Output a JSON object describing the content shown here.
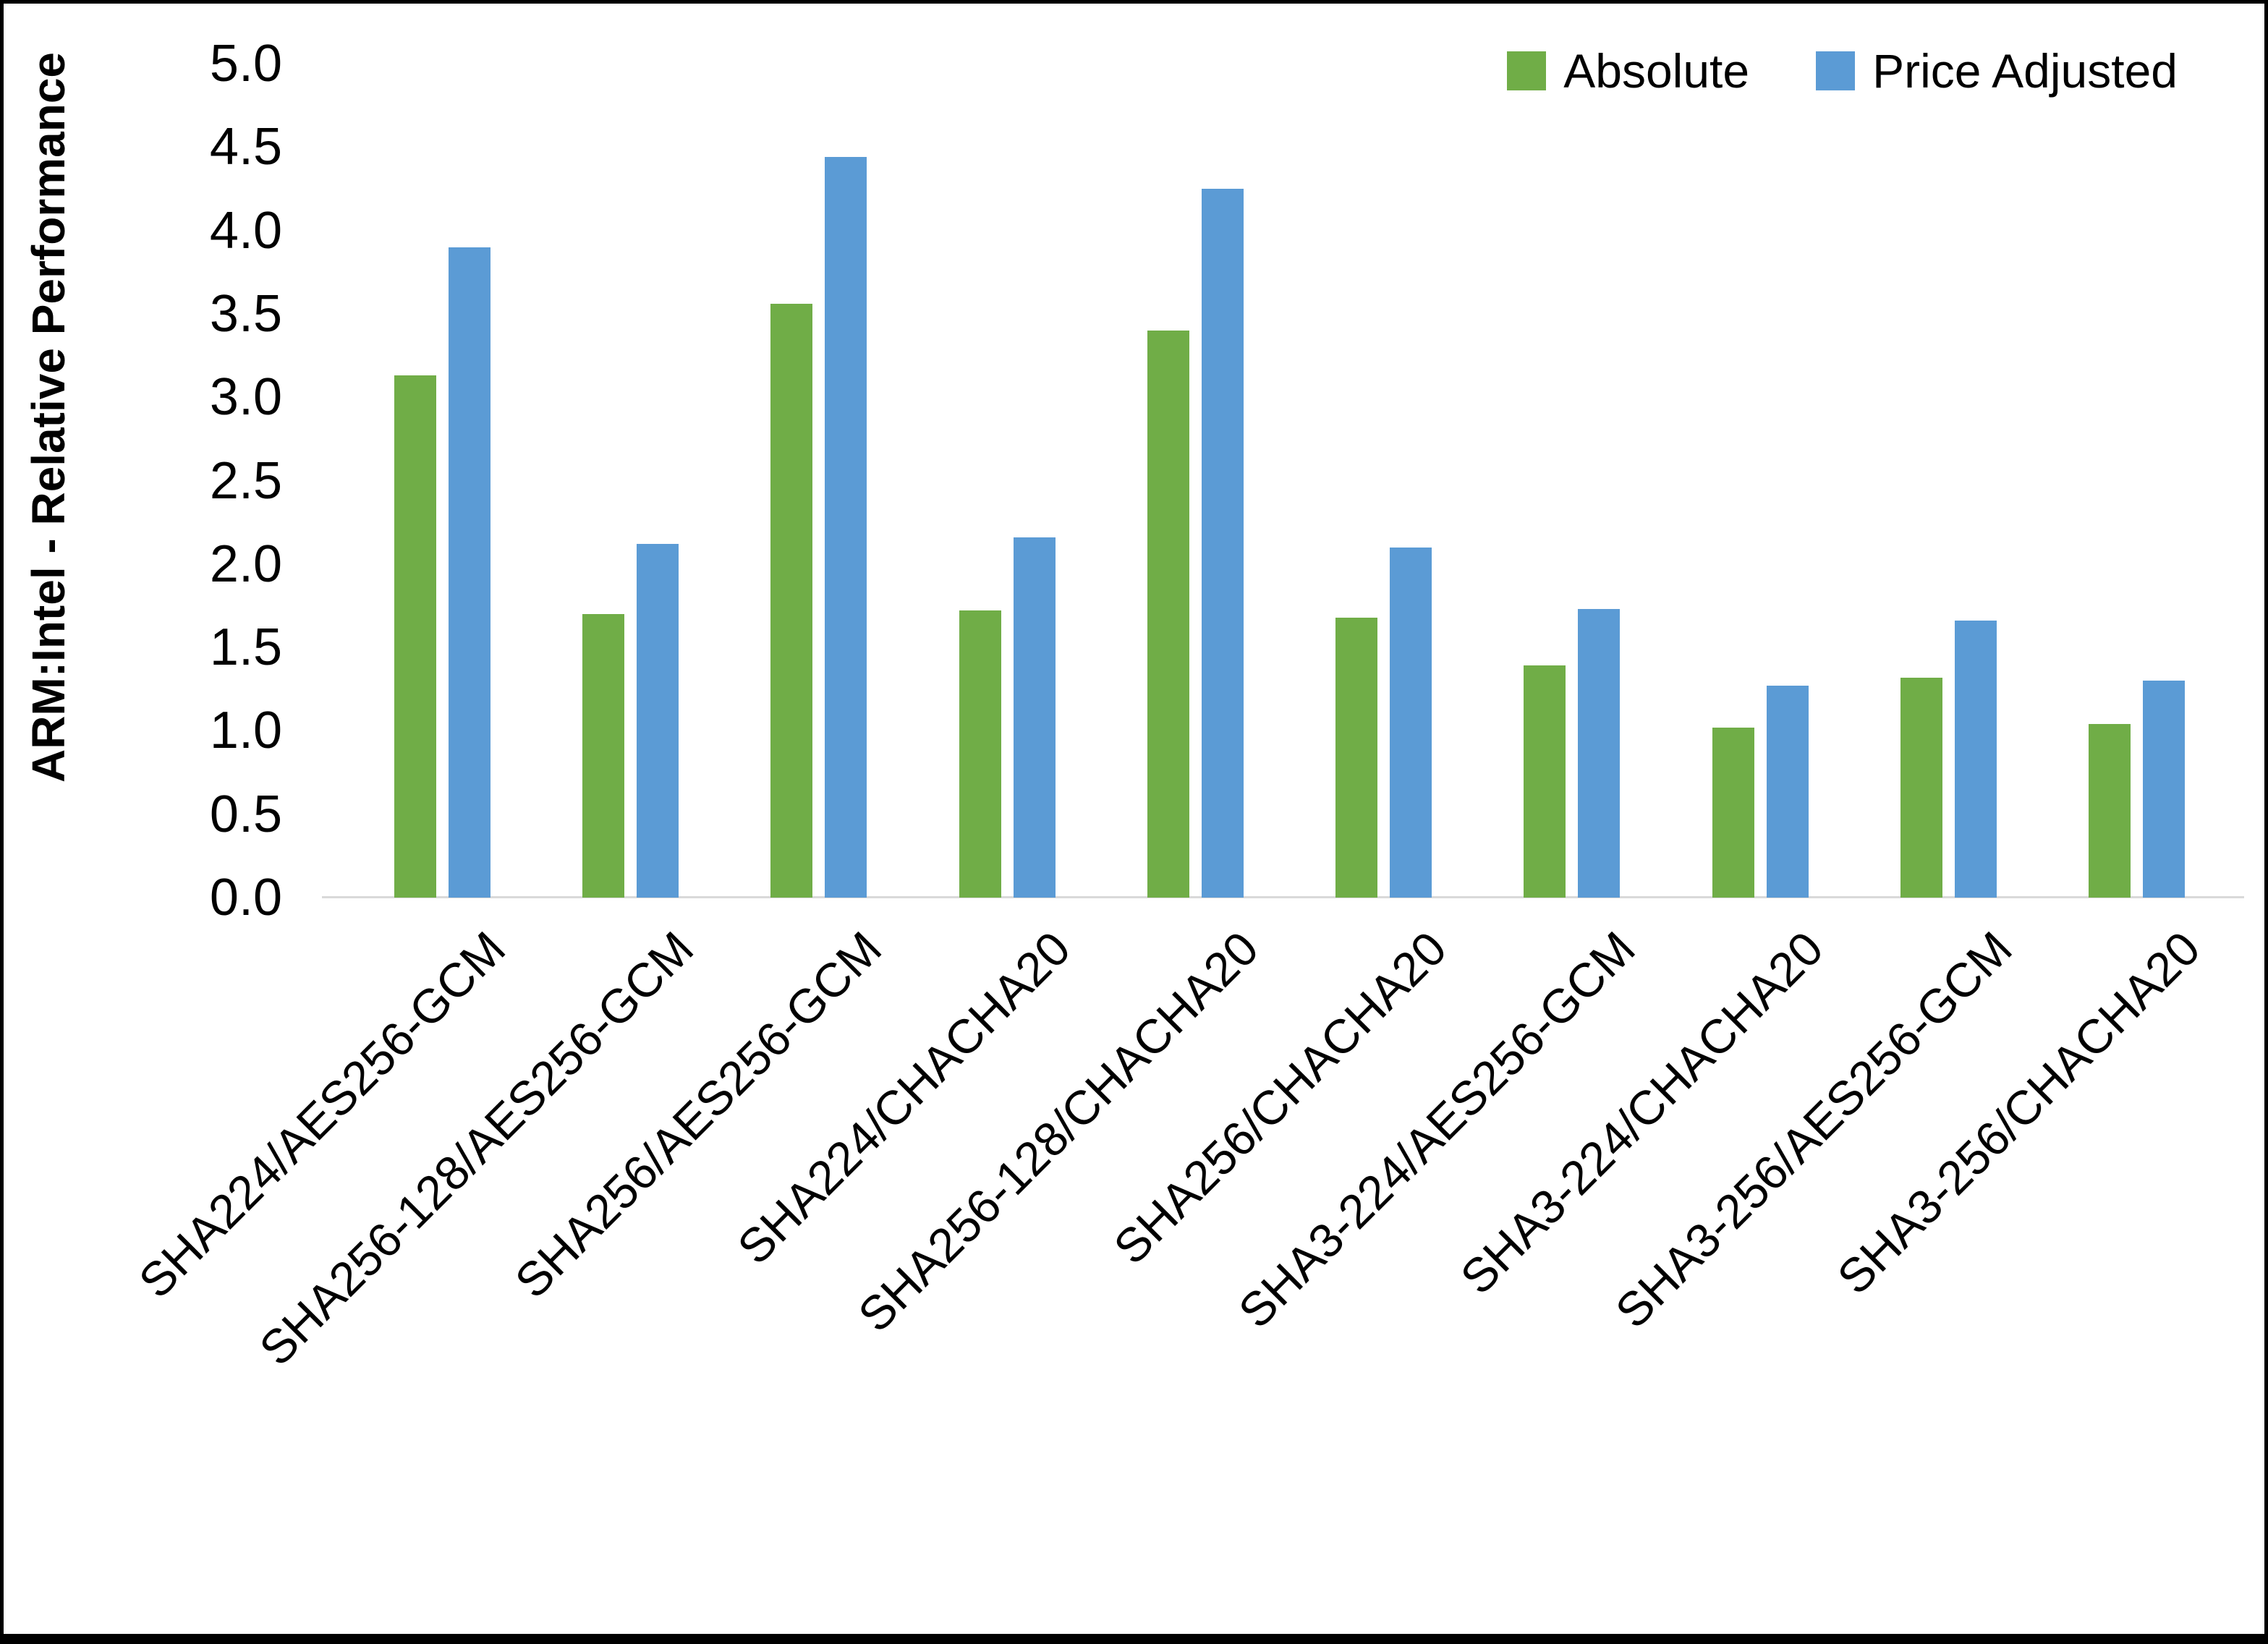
{
  "figure": {
    "background": "#ffffff",
    "border_color": "#000000"
  },
  "y_axis": {
    "title": "ARM:Intel - Relative Performance",
    "ticks": [
      "5.0",
      "4.5",
      "4.0",
      "3.5",
      "3.0",
      "2.5",
      "2.0",
      "1.5",
      "1.0",
      "0.5",
      "0.0"
    ],
    "min": 0.0,
    "max": 5.0,
    "step": 0.5
  },
  "legend": [
    {
      "label": "Absolute",
      "color": "#70AD47"
    },
    {
      "label": "Price Adjusted",
      "color": "#5B9BD5"
    }
  ],
  "chart_data": {
    "type": "bar",
    "title": "",
    "xlabel": "",
    "ylabel": "ARM:Intel - Relative Performance",
    "ylim": [
      0,
      5
    ],
    "grid": false,
    "legend_position": "top-right",
    "axis_line_color": "#d9d9d9",
    "categories": [
      "SHA224/AES256-GCM",
      "SHA256-128/AES256-GCM",
      "SHA256/AES256-GCM",
      "SHA224/CHACHA20",
      "SHA256-128/CHACHA20",
      "SHA256/CHACHA20",
      "SHA3-224/AES256-GCM",
      "SHA3-224/CHACHA20",
      "SHA3-256/AES256-GCM",
      "SHA3-256/CHACHA20"
    ],
    "series": [
      {
        "name": "Absolute",
        "color": "#70AD47",
        "values": [
          3.13,
          1.7,
          3.56,
          1.72,
          3.4,
          1.68,
          1.39,
          1.02,
          1.32,
          1.04
        ]
      },
      {
        "name": "Price Adjusted",
        "color": "#5B9BD5",
        "values": [
          3.9,
          2.12,
          4.44,
          2.16,
          4.25,
          2.1,
          1.73,
          1.27,
          1.66,
          1.3
        ]
      }
    ]
  }
}
